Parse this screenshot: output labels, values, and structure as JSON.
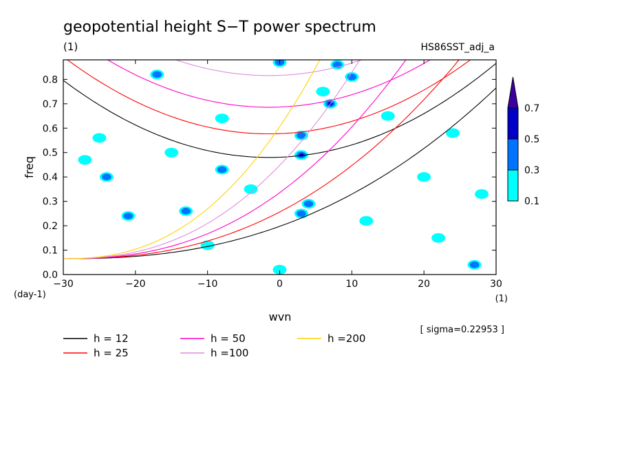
{
  "chart_data": {
    "type": "heatmap",
    "title": "geopotential height S−T power spectrum",
    "subtitle_left": "(1)",
    "subtitle_right": "HS86SST_adj_a",
    "xlabel": "wvn",
    "ylabel": "freq",
    "x_unit": "(1)",
    "y_unit": "(day-1)",
    "xlim": [
      -30,
      30
    ],
    "ylim": [
      0,
      0.88
    ],
    "x_ticks": [
      -30,
      -20,
      -10,
      0,
      10,
      20,
      30
    ],
    "y_ticks": [
      0.0,
      0.1,
      0.2,
      0.3,
      0.4,
      0.5,
      0.6,
      0.7,
      0.8
    ],
    "note": "[ sigma=0.22953 ]",
    "colorbar": {
      "levels": [
        0.1,
        0.3,
        0.5,
        0.7
      ],
      "colors": [
        "#00ffff",
        "#0073ff",
        "#0000c8",
        "#3c00a0"
      ]
    },
    "contour_patches": [
      {
        "x": 3,
        "y": 0.49,
        "level": 3
      },
      {
        "x": 3,
        "y": 0.57,
        "level": 2
      },
      {
        "x": 7,
        "y": 0.7,
        "level": 3
      },
      {
        "x": 10,
        "y": 0.81,
        "level": 2
      },
      {
        "x": 4,
        "y": 0.29,
        "level": 2
      },
      {
        "x": 3,
        "y": 0.25,
        "level": 2
      },
      {
        "x": -8,
        "y": 0.43,
        "level": 2
      },
      {
        "x": 0,
        "y": 0.87,
        "level": 2
      },
      {
        "x": 8,
        "y": 0.86,
        "level": 2
      },
      {
        "x": -13,
        "y": 0.26,
        "level": 2
      },
      {
        "x": -17,
        "y": 0.82,
        "level": 2
      },
      {
        "x": -24,
        "y": 0.4,
        "level": 2
      },
      {
        "x": -21,
        "y": 0.24,
        "level": 2
      },
      {
        "x": 27,
        "y": 0.04,
        "level": 2
      },
      {
        "x": 24,
        "y": 0.58,
        "level": 1
      },
      {
        "x": -8,
        "y": 0.64,
        "level": 1
      },
      {
        "x": 6,
        "y": 0.75,
        "level": 1
      },
      {
        "x": -25,
        "y": 0.56,
        "level": 1
      },
      {
        "x": -4,
        "y": 0.35,
        "level": 1
      },
      {
        "x": 12,
        "y": 0.22,
        "level": 1
      },
      {
        "x": 20,
        "y": 0.4,
        "level": 1
      },
      {
        "x": -15,
        "y": 0.5,
        "level": 1
      },
      {
        "x": 15,
        "y": 0.65,
        "level": 1
      },
      {
        "x": -10,
        "y": 0.12,
        "level": 1
      },
      {
        "x": 0,
        "y": 0.02,
        "level": 1
      },
      {
        "x": 22,
        "y": 0.15,
        "level": 1
      },
      {
        "x": -27,
        "y": 0.47,
        "level": 1
      },
      {
        "x": 28,
        "y": 0.33,
        "level": 1
      }
    ],
    "series": [
      {
        "name": "h = 12",
        "h": 12,
        "color": "#000000"
      },
      {
        "name": "h = 25",
        "h": 25,
        "color": "#ff0000"
      },
      {
        "name": "h = 50",
        "h": 50,
        "color": "#ff00c8"
      },
      {
        "name": "h =100",
        "h": 100,
        "color": "#dc8cdc"
      },
      {
        "name": "h =200",
        "h": 200,
        "color": "#ffd200"
      }
    ],
    "grid": false,
    "legend_position": "bottom"
  }
}
